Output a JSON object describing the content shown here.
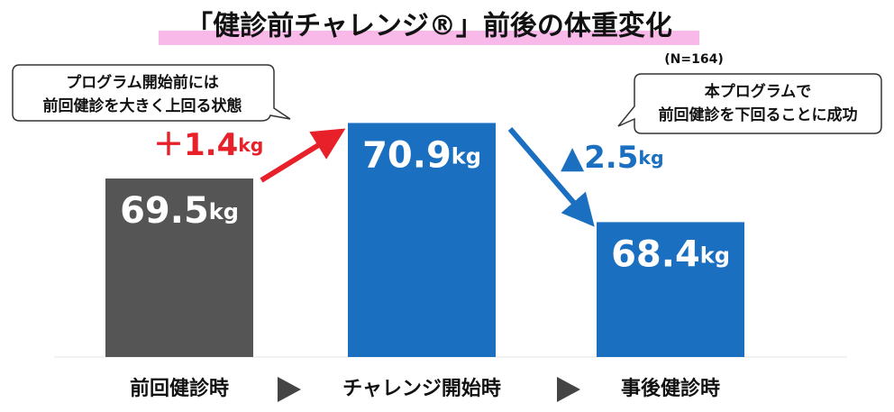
{
  "chart_data": {
    "type": "bar",
    "title": "「健診前チャレンジ®」前後の体重変化",
    "subtitle": "(N=164)",
    "categories": [
      "前回健診時",
      "チャレンジ開始時",
      "事後健診時"
    ],
    "values": [
      69.5,
      70.9,
      68.4
    ],
    "value_labels": [
      "69.5kg",
      "70.9kg",
      "68.4kg"
    ],
    "colors": [
      "#555555",
      "#1a6fc0",
      "#1a6fc0"
    ],
    "ylim": [
      65,
      71.5
    ],
    "annotations": [
      {
        "lines": [
          "プログラム開始前には",
          "前回健診を大きく上回る状態"
        ]
      },
      {
        "lines": [
          "本プログラムで",
          "前回健診を下回ることに成功"
        ]
      }
    ],
    "changes": [
      "＋1.4kg",
      "▲2.5kg"
    ]
  }
}
